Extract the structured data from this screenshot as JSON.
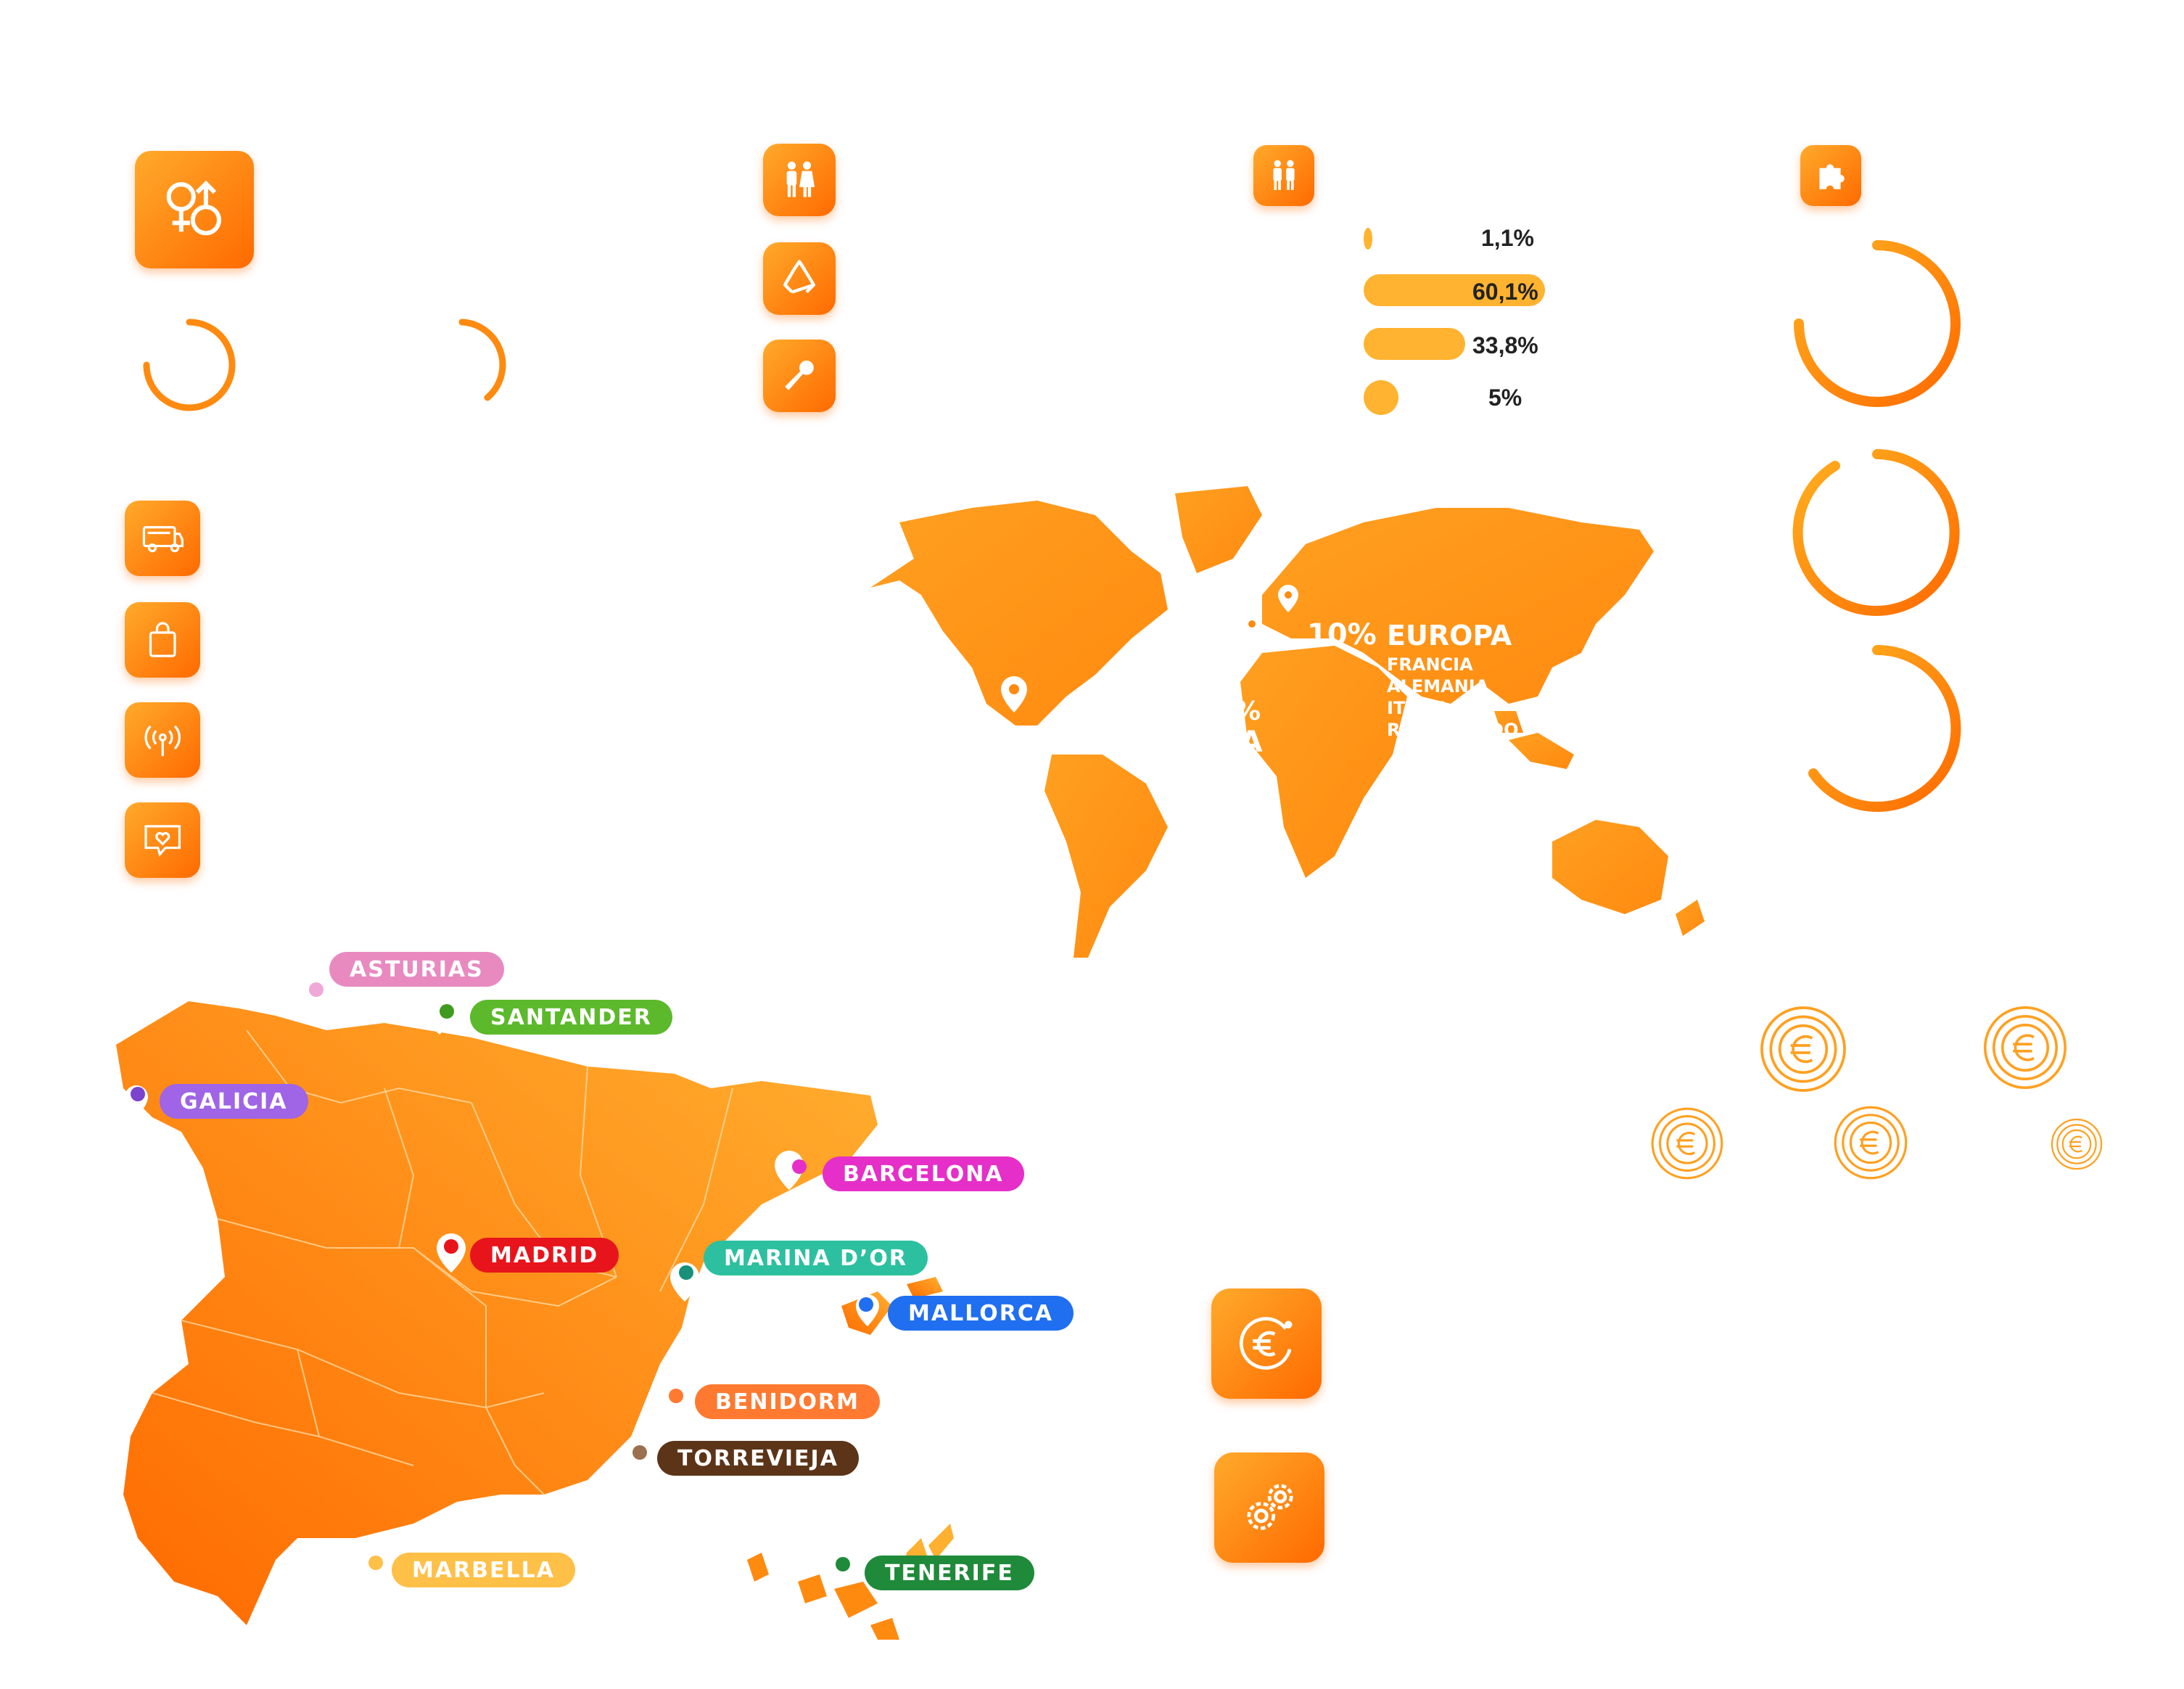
{
  "colors": {
    "accent": "#ff7a00",
    "accent_light": "#ffb330",
    "bar": "#ffb330"
  },
  "icons": {
    "gender": "gender-icon",
    "restroom": "restroom-icon",
    "recycle": "recycle-icon",
    "microphone": "microphone-icon",
    "people": "people-icon",
    "puzzle": "puzzle-icon",
    "food_truck": "food-truck-icon",
    "shopping_bag": "shopping-bag-icon",
    "antenna": "antenna-icon",
    "chat_heart": "chat-heart-icon",
    "euro": "euro-icon",
    "gears": "gears-icon"
  },
  "stats": [
    {
      "value": 1.1,
      "label": "1,1%"
    },
    {
      "value": 60.1,
      "label": "60,1%"
    },
    {
      "value": 33.8,
      "label": "33,8%"
    },
    {
      "value": 5,
      "label": "5%"
    }
  ],
  "world_map": {
    "europe_pct": "10%",
    "europe_title": "EUROPA",
    "countries": [
      "FRANCIA",
      "ALEMANIA",
      "ITALIA",
      "REINO UNIDO"
    ],
    "partial_pct": "%",
    "partial_name": "ÑA"
  },
  "cities": [
    {
      "name": "ASTURIAS",
      "color": "#e88ac0",
      "dot": "#f0a8d8"
    },
    {
      "name": "SANTANDER",
      "color": "#5db92c",
      "dot": "#3f9a20"
    },
    {
      "name": "GALICIA",
      "color": "#a064e6",
      "dot": "#7c44cc"
    },
    {
      "name": "BARCELONA",
      "color": "#e62ec8",
      "dot": "#e62ec8"
    },
    {
      "name": "MADRID",
      "color": "#e8141c",
      "dot": "#e8141c"
    },
    {
      "name": "MARINA D’OR",
      "color": "#2cc0a0",
      "dot": "#18907a"
    },
    {
      "name": "MALLORCA",
      "color": "#1f6ff0",
      "dot": "#1f6ff0"
    },
    {
      "name": "BENIDORM",
      "color": "#ff7a30",
      "dot": "#ff7a30"
    },
    {
      "name": "TORREVIEJA",
      "color": "#5c3418",
      "dot": "#9a7050"
    },
    {
      "name": "MARBELLA",
      "color": "#ffc048",
      "dot": "#ffc048"
    },
    {
      "name": "TENERIFE",
      "color": "#1f8a3a",
      "dot": "#1f8a3a"
    }
  ]
}
